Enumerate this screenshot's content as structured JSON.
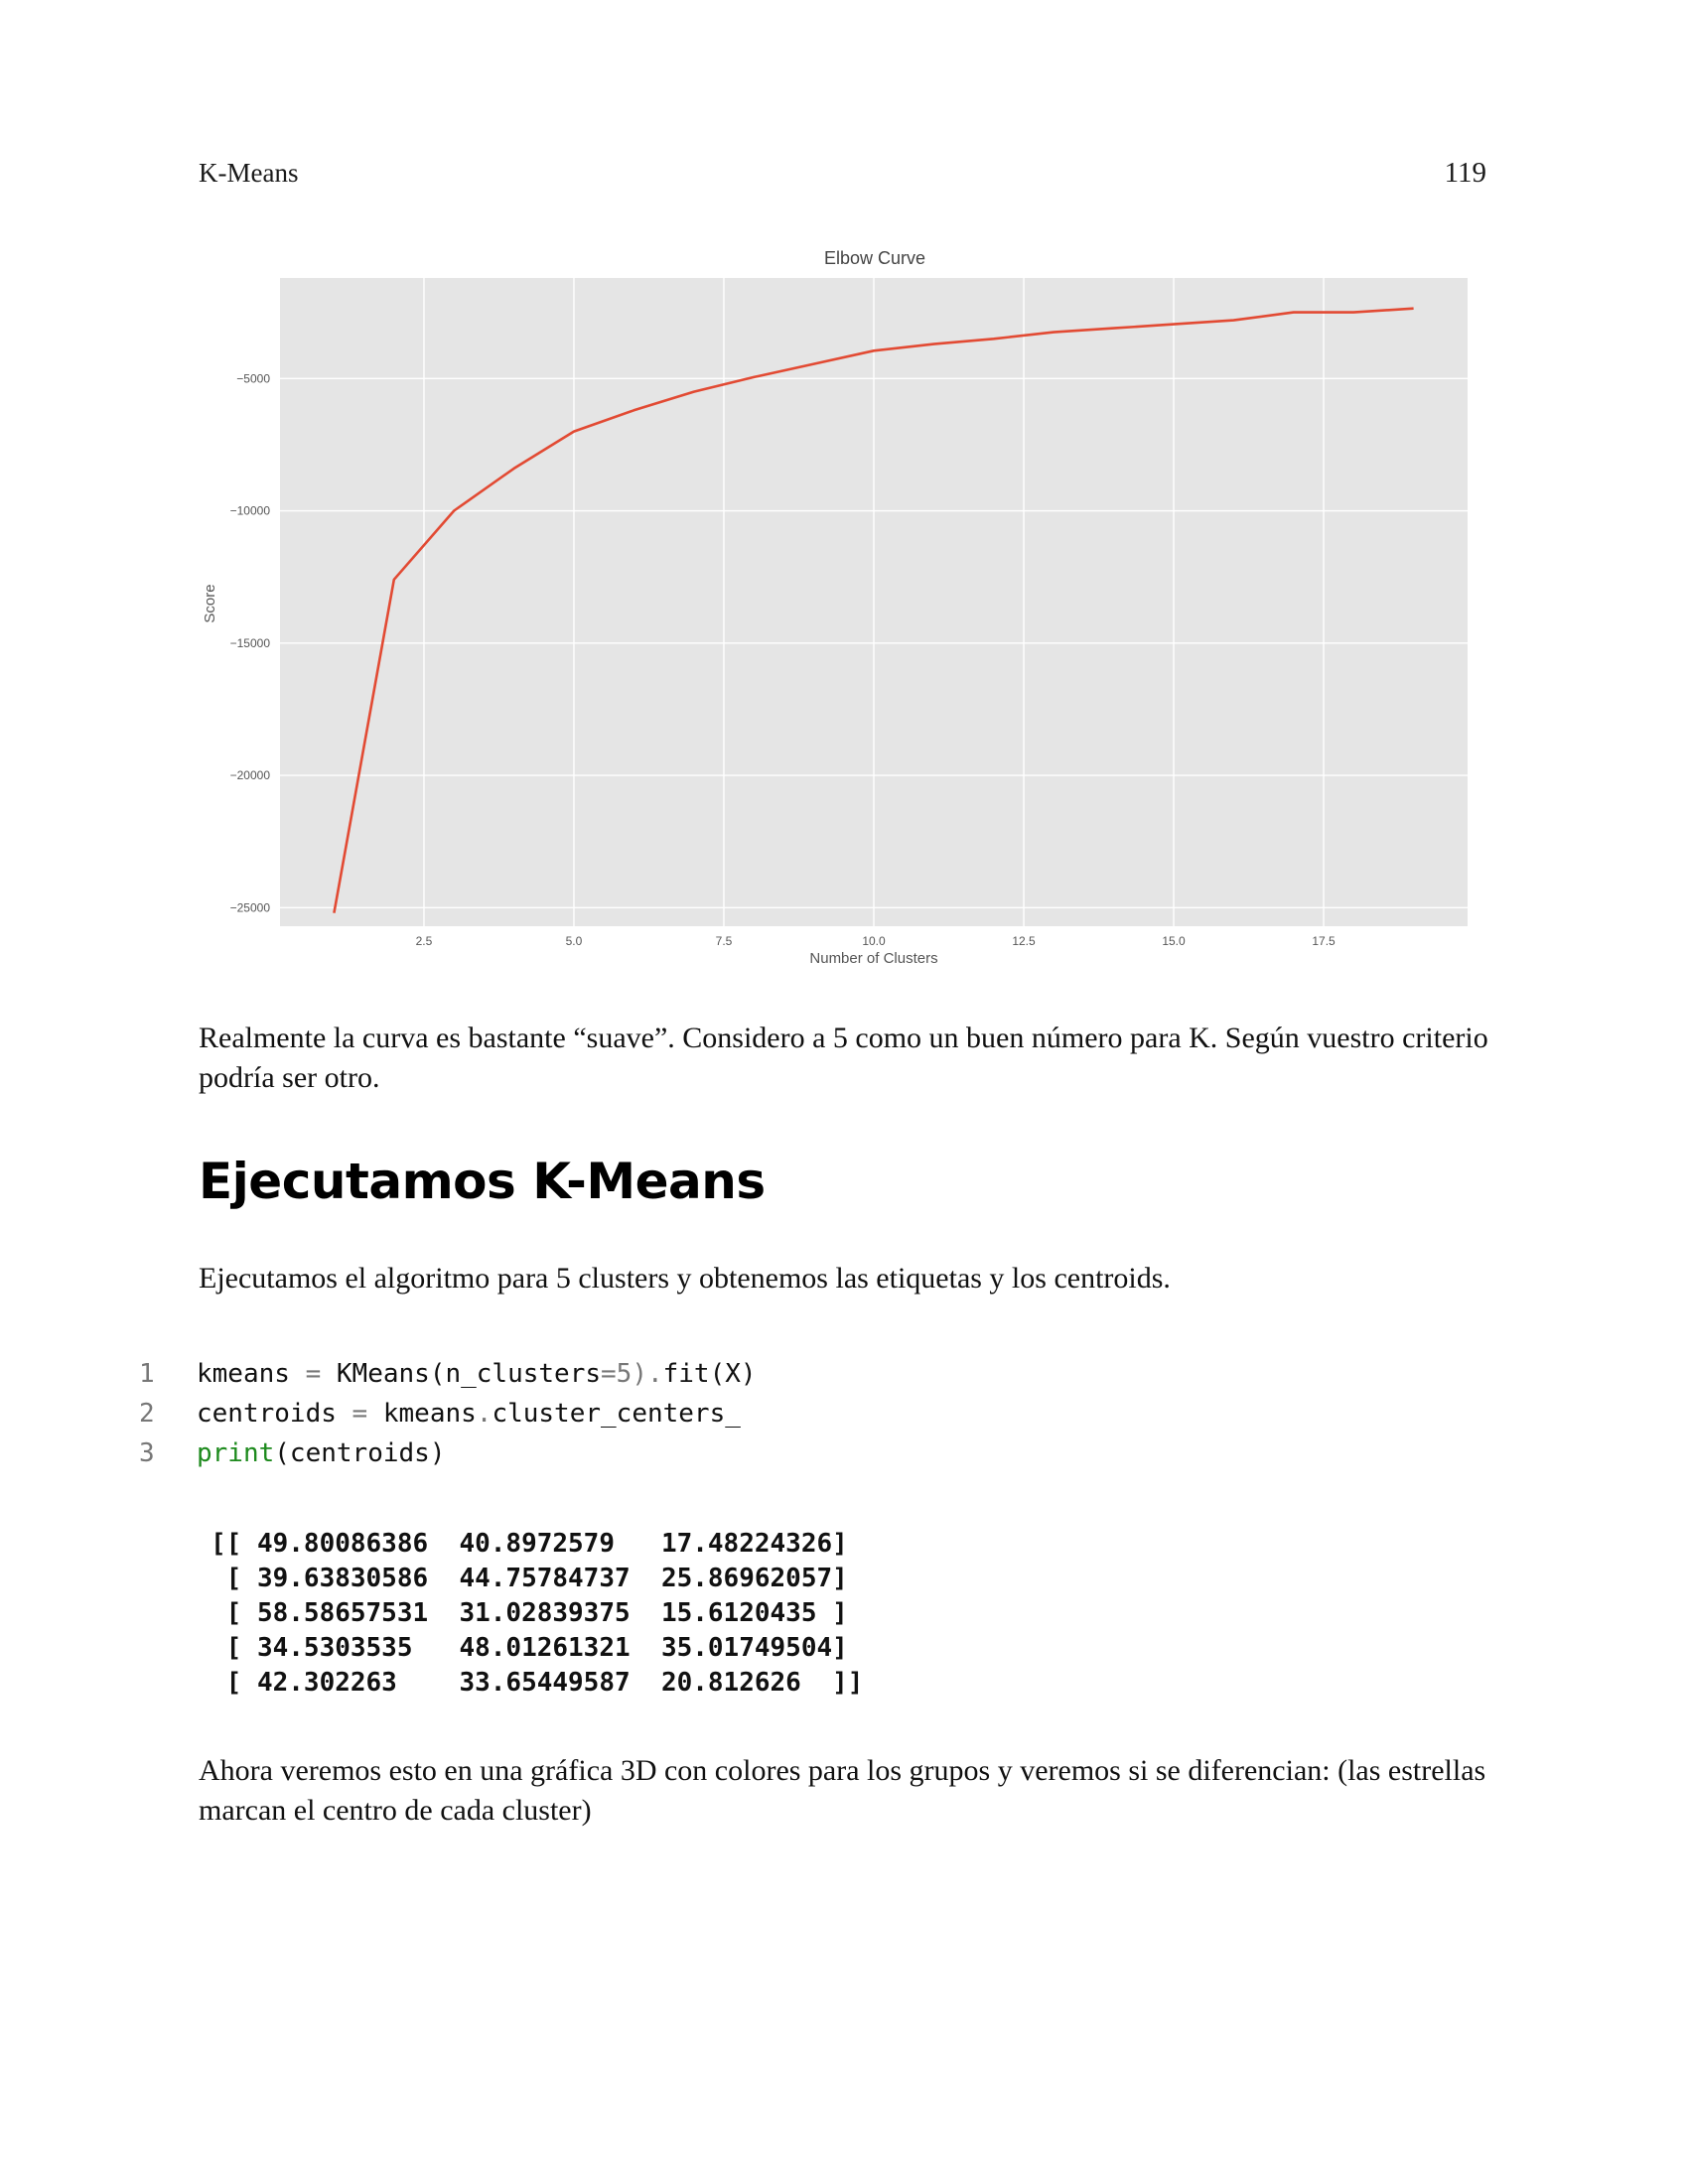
{
  "header": {
    "section": "K-Means",
    "page_number": "119"
  },
  "chart_data": {
    "type": "line",
    "title": "Elbow Curve",
    "xlabel": "Number of Clusters",
    "ylabel": "Score",
    "xlim": [
      0.1,
      19.9
    ],
    "ylim": [
      -25700,
      -1200
    ],
    "xticks": [
      2.5,
      5.0,
      7.5,
      10.0,
      12.5,
      15.0,
      17.5
    ],
    "xtick_labels": [
      "2.5",
      "5.0",
      "7.5",
      "10.0",
      "12.5",
      "15.0",
      "17.5"
    ],
    "yticks": [
      -5000,
      -10000,
      -15000,
      -20000,
      -25000
    ],
    "ytick_labels": [
      "−5000",
      "−10000",
      "−15000",
      "−20000",
      "−25000"
    ],
    "grid": true,
    "background": "#e5e5e5",
    "line_color": "#e24a33",
    "series": [
      {
        "x": [
          1,
          2,
          3,
          4,
          5,
          6,
          7,
          8,
          9,
          10,
          11,
          12,
          13,
          14,
          15,
          16,
          17,
          18,
          19
        ],
        "values": [
          -25200,
          -12600,
          -10000,
          -8400,
          -7000,
          -6200,
          -5500,
          -4950,
          -4450,
          -3950,
          -3700,
          -3500,
          -3250,
          -3100,
          -2950,
          -2800,
          -2500,
          -2500,
          -2350
        ]
      }
    ]
  },
  "paragraphs": {
    "p1": "Realmente la curva es bastante “suave”. Considero a 5 como un buen número para K. Según vuestro criterio podría ser otro.",
    "p2": "Ejecutamos el algoritmo para 5 clusters y obtenemos las etiquetas y los centroids.",
    "p3": "Ahora veremos esto en una gráfica 3D con colores para los grupos y veremos si se diferencian: (las estrellas marcan el centro de cada cluster)"
  },
  "section_title": "Ejecutamos K-Means",
  "code": {
    "line_numbers": [
      "1",
      "2",
      "3"
    ],
    "line1": {
      "a": "kmeans ",
      "b": "=",
      "c": " KMeans(n_clusters",
      "d": "=5",
      "e": ").",
      "f": "fit(X)"
    },
    "line2": {
      "a": "centroids ",
      "b": "=",
      "c": " kmeans",
      "d": ".",
      "e": "cluster_centers_"
    },
    "line3": {
      "a": "print",
      "b": "(centroids)"
    }
  },
  "output_lines": [
    "[[ 49.80086386  40.8972579   17.48224326]",
    " [ 39.63830586  44.75784737  25.86962057]",
    " [ 58.58657531  31.02839375  15.6120435 ]",
    " [ 34.5303535   48.01261321  35.01749504]",
    " [ 42.302263    33.65449587  20.812626  ]]"
  ]
}
